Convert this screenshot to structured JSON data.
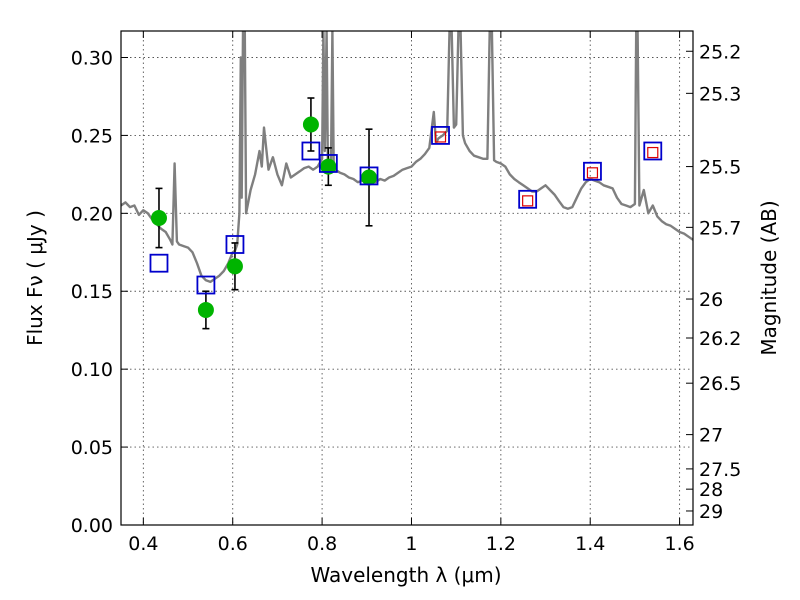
{
  "chart_data": {
    "type": "scatter",
    "xlabel": "Wavelength  λ (μm)",
    "ylabel": "Flux  Fν  ( μJy )",
    "ylabel_right": "Magnitude (AB)",
    "xlim": [
      0.35,
      1.63
    ],
    "ylim": [
      0.0,
      0.317
    ],
    "grid": true,
    "x_ticks": [
      0.4,
      0.6,
      0.8,
      1.0,
      1.2,
      1.4,
      1.6
    ],
    "x_tick_labels": [
      "0.4",
      "0.6",
      "0.8",
      "1",
      "1.2",
      "1.4",
      "1.6"
    ],
    "y_ticks": [
      0.0,
      0.05,
      0.1,
      0.15,
      0.2,
      0.25,
      0.3
    ],
    "y_tick_labels": [
      "0.00",
      "0.05",
      "0.10",
      "0.15",
      "0.20",
      "0.25",
      "0.30"
    ],
    "right_ticks": [
      {
        "label": "25.2",
        "flux": 0.304
      },
      {
        "label": "25.3",
        "flux": 0.277
      },
      {
        "label": "25.5",
        "flux": 0.23
      },
      {
        "label": "25.7",
        "flux": 0.191
      },
      {
        "label": "26",
        "flux": 0.145
      },
      {
        "label": "26.2",
        "flux": 0.12
      },
      {
        "label": "26.5",
        "flux": 0.091
      },
      {
        "label": "27",
        "flux": 0.058
      },
      {
        "label": "27.5",
        "flux": 0.036
      },
      {
        "label": "28",
        "flux": 0.023
      },
      {
        "label": "29",
        "flux": 0.009
      }
    ],
    "series": [
      {
        "marker": "filled-circle",
        "color": "#00b400",
        "points": [
          {
            "x": 0.435,
            "y": 0.197,
            "err": 0.019
          },
          {
            "x": 0.54,
            "y": 0.138,
            "err": 0.012
          },
          {
            "x": 0.605,
            "y": 0.166,
            "err": 0.015
          },
          {
            "x": 0.775,
            "y": 0.257,
            "err": 0.017
          },
          {
            "x": 0.814,
            "y": 0.23,
            "err": 0.012
          },
          {
            "x": 0.905,
            "y": 0.223,
            "err": 0.031
          }
        ]
      },
      {
        "marker": "open-square",
        "color": "#0000cc",
        "points": [
          {
            "x": 0.435,
            "y": 0.168
          },
          {
            "x": 0.54,
            "y": 0.154
          },
          {
            "x": 0.605,
            "y": 0.18
          },
          {
            "x": 0.775,
            "y": 0.24
          },
          {
            "x": 0.814,
            "y": 0.232
          },
          {
            "x": 0.905,
            "y": 0.224
          },
          {
            "x": 1.065,
            "y": 0.25
          },
          {
            "x": 1.26,
            "y": 0.209
          },
          {
            "x": 1.405,
            "y": 0.227
          },
          {
            "x": 1.54,
            "y": 0.24
          }
        ]
      },
      {
        "marker": "small-open-square",
        "color": "#dd0000",
        "points": [
          {
            "x": 1.065,
            "y": 0.249
          },
          {
            "x": 1.26,
            "y": 0.208
          },
          {
            "x": 1.405,
            "y": 0.226
          },
          {
            "x": 1.54,
            "y": 0.239
          }
        ]
      },
      {
        "marker": "line",
        "color": "#7f7f7f",
        "points": [
          [
            0.35,
            0.205
          ],
          [
            0.36,
            0.207
          ],
          [
            0.37,
            0.204
          ],
          [
            0.38,
            0.205
          ],
          [
            0.39,
            0.199
          ],
          [
            0.4,
            0.202
          ],
          [
            0.41,
            0.2
          ],
          [
            0.42,
            0.196
          ],
          [
            0.43,
            0.193
          ],
          [
            0.44,
            0.19
          ],
          [
            0.45,
            0.188
          ],
          [
            0.46,
            0.183
          ],
          [
            0.465,
            0.18
          ],
          [
            0.47,
            0.232
          ],
          [
            0.475,
            0.182
          ],
          [
            0.48,
            0.18
          ],
          [
            0.49,
            0.179
          ],
          [
            0.5,
            0.178
          ],
          [
            0.51,
            0.175
          ],
          [
            0.52,
            0.168
          ],
          [
            0.53,
            0.16
          ],
          [
            0.54,
            0.157
          ],
          [
            0.55,
            0.156
          ],
          [
            0.56,
            0.158
          ],
          [
            0.57,
            0.16
          ],
          [
            0.58,
            0.163
          ],
          [
            0.59,
            0.168
          ],
          [
            0.6,
            0.175
          ],
          [
            0.605,
            0.176
          ],
          [
            0.61,
            0.18
          ],
          [
            0.615,
            0.2
          ],
          [
            0.618,
            0.3
          ],
          [
            0.62,
            0.21
          ],
          [
            0.623,
            0.317
          ],
          [
            0.627,
            0.317
          ],
          [
            0.63,
            0.2
          ],
          [
            0.64,
            0.215
          ],
          [
            0.65,
            0.225
          ],
          [
            0.66,
            0.24
          ],
          [
            0.665,
            0.23
          ],
          [
            0.67,
            0.255
          ],
          [
            0.68,
            0.228
          ],
          [
            0.69,
            0.236
          ],
          [
            0.7,
            0.225
          ],
          [
            0.71,
            0.218
          ],
          [
            0.72,
            0.232
          ],
          [
            0.73,
            0.223
          ],
          [
            0.74,
            0.225
          ],
          [
            0.75,
            0.227
          ],
          [
            0.76,
            0.229
          ],
          [
            0.77,
            0.23
          ],
          [
            0.78,
            0.228
          ],
          [
            0.79,
            0.23
          ],
          [
            0.8,
            0.235
          ],
          [
            0.803,
            0.317
          ],
          [
            0.806,
            0.24
          ],
          [
            0.81,
            0.317
          ],
          [
            0.813,
            0.23
          ],
          [
            0.82,
            0.232
          ],
          [
            0.823,
            0.317
          ],
          [
            0.826,
            0.23
          ],
          [
            0.83,
            0.228
          ],
          [
            0.84,
            0.226
          ],
          [
            0.85,
            0.225
          ],
          [
            0.86,
            0.223
          ],
          [
            0.87,
            0.222
          ],
          [
            0.88,
            0.22
          ],
          [
            0.89,
            0.221
          ],
          [
            0.9,
            0.22
          ],
          [
            0.91,
            0.221
          ],
          [
            0.92,
            0.22
          ],
          [
            0.93,
            0.222
          ],
          [
            0.94,
            0.221
          ],
          [
            0.95,
            0.223
          ],
          [
            0.96,
            0.224
          ],
          [
            0.97,
            0.226
          ],
          [
            0.98,
            0.228
          ],
          [
            0.99,
            0.229
          ],
          [
            1.0,
            0.23
          ],
          [
            1.01,
            0.233
          ],
          [
            1.02,
            0.235
          ],
          [
            1.03,
            0.238
          ],
          [
            1.04,
            0.242
          ],
          [
            1.05,
            0.265
          ],
          [
            1.055,
            0.245
          ],
          [
            1.06,
            0.248
          ],
          [
            1.07,
            0.25
          ],
          [
            1.08,
            0.253
          ],
          [
            1.085,
            0.317
          ],
          [
            1.09,
            0.317
          ],
          [
            1.095,
            0.255
          ],
          [
            1.1,
            0.257
          ],
          [
            1.105,
            0.317
          ],
          [
            1.11,
            0.317
          ],
          [
            1.115,
            0.25
          ],
          [
            1.12,
            0.245
          ],
          [
            1.13,
            0.24
          ],
          [
            1.14,
            0.237
          ],
          [
            1.15,
            0.236
          ],
          [
            1.16,
            0.235
          ],
          [
            1.17,
            0.235
          ],
          [
            1.175,
            0.317
          ],
          [
            1.18,
            0.317
          ],
          [
            1.185,
            0.234
          ],
          [
            1.19,
            0.233
          ],
          [
            1.2,
            0.232
          ],
          [
            1.21,
            0.23
          ],
          [
            1.22,
            0.225
          ],
          [
            1.23,
            0.222
          ],
          [
            1.24,
            0.22
          ],
          [
            1.25,
            0.218
          ],
          [
            1.26,
            0.216
          ],
          [
            1.27,
            0.214
          ],
          [
            1.28,
            0.214
          ],
          [
            1.29,
            0.216
          ],
          [
            1.3,
            0.218
          ],
          [
            1.31,
            0.215
          ],
          [
            1.32,
            0.212
          ],
          [
            1.33,
            0.208
          ],
          [
            1.34,
            0.204
          ],
          [
            1.35,
            0.203
          ],
          [
            1.36,
            0.204
          ],
          [
            1.37,
            0.21
          ],
          [
            1.38,
            0.216
          ],
          [
            1.39,
            0.22
          ],
          [
            1.4,
            0.222
          ],
          [
            1.41,
            0.221
          ],
          [
            1.42,
            0.22
          ],
          [
            1.43,
            0.218
          ],
          [
            1.44,
            0.217
          ],
          [
            1.45,
            0.216
          ],
          [
            1.46,
            0.21
          ],
          [
            1.47,
            0.206
          ],
          [
            1.48,
            0.205
          ],
          [
            1.49,
            0.204
          ],
          [
            1.5,
            0.206
          ],
          [
            1.503,
            0.317
          ],
          [
            1.506,
            0.317
          ],
          [
            1.51,
            0.205
          ],
          [
            1.52,
            0.215
          ],
          [
            1.53,
            0.2
          ],
          [
            1.54,
            0.205
          ],
          [
            1.55,
            0.198
          ],
          [
            1.56,
            0.195
          ],
          [
            1.57,
            0.193
          ],
          [
            1.58,
            0.192
          ],
          [
            1.59,
            0.19
          ],
          [
            1.6,
            0.188
          ],
          [
            1.61,
            0.187
          ],
          [
            1.62,
            0.185
          ],
          [
            1.63,
            0.183
          ]
        ]
      }
    ]
  }
}
